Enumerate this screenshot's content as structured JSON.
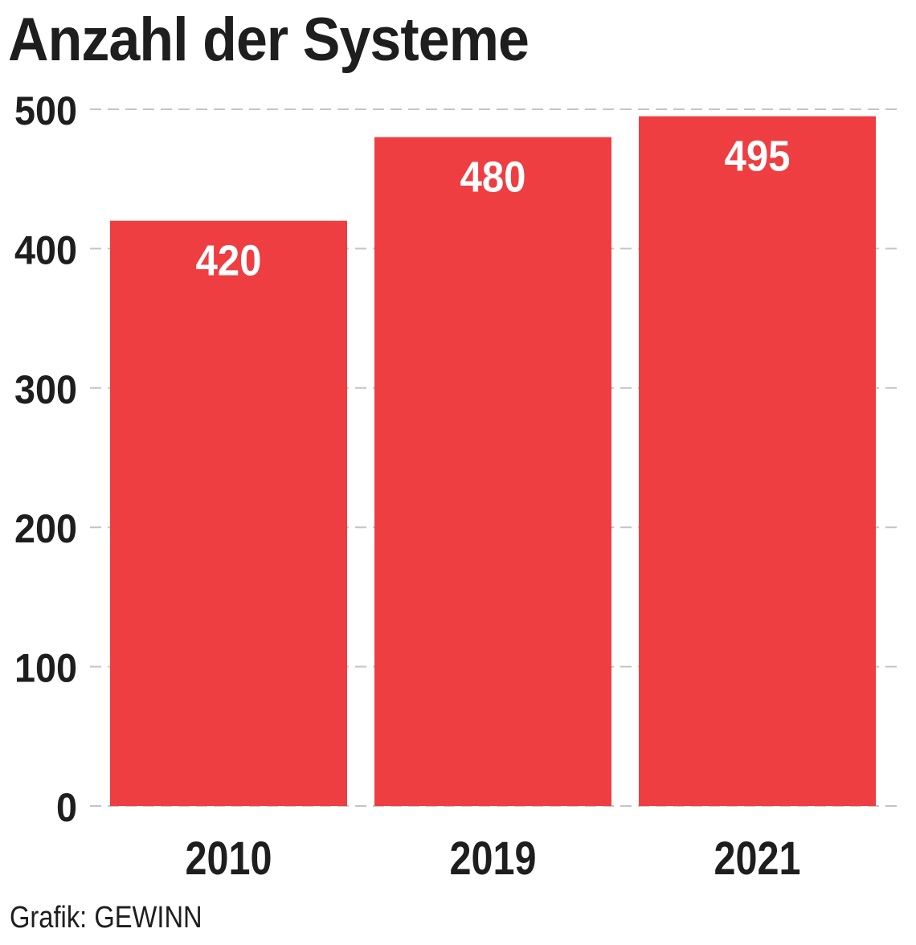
{
  "title": "Anzahl der Systeme",
  "source": "Grafik: GEWINN",
  "colors": {
    "bar": "#ee3e42",
    "text": "#1e1e1e",
    "grid": "#c4c4c4",
    "bar_label": "#ffffff"
  },
  "chart_data": {
    "type": "bar",
    "categories": [
      "2010",
      "2019",
      "2021"
    ],
    "values": [
      420,
      480,
      495
    ],
    "data_labels": [
      "420",
      "480",
      "495"
    ],
    "title": "Anzahl der Systeme",
    "xlabel": "",
    "ylabel": "",
    "ylim": [
      0,
      500
    ],
    "yticks": [
      0,
      100,
      200,
      300,
      400,
      500
    ],
    "grid": "horizontal dashed",
    "legend": "none"
  }
}
